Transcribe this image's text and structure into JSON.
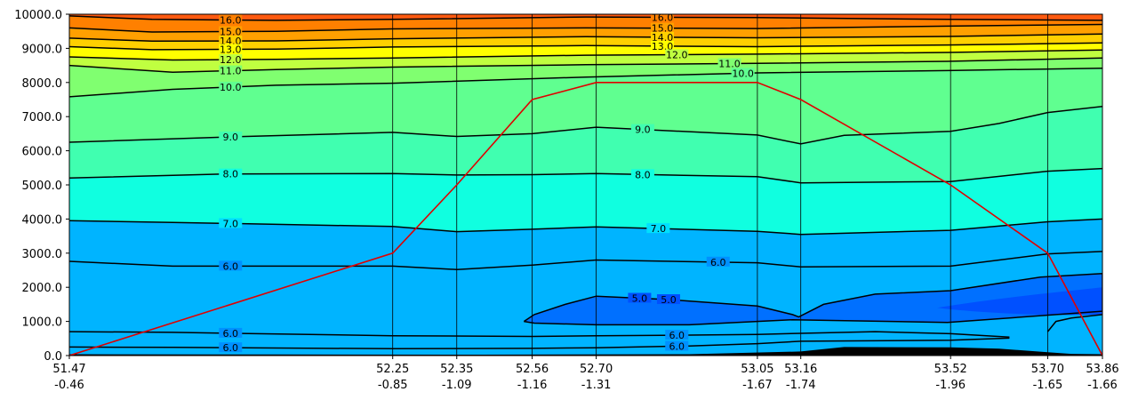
{
  "chart_data": {
    "type": "contour",
    "title": "",
    "xlabel": "",
    "ylabel": "",
    "ylim": [
      0,
      10000
    ],
    "y_ticks": [
      "0.0",
      "1000.0",
      "2000.0",
      "3000.0",
      "4000.0",
      "5000.0",
      "6000.0",
      "7000.0",
      "8000.0",
      "9000.0",
      "10000.0"
    ],
    "y_tick_values": [
      0,
      1000,
      2000,
      3000,
      4000,
      5000,
      6000,
      7000,
      8000,
      9000,
      10000
    ],
    "stations": [
      {
        "lat": "51.47",
        "lon": "-0.46",
        "x": 0.0
      },
      {
        "lat": "52.25",
        "lon": "-0.85",
        "x": 0.313
      },
      {
        "lat": "52.35",
        "lon": "-1.09",
        "x": 0.375
      },
      {
        "lat": "52.56",
        "lon": "-1.16",
        "x": 0.448
      },
      {
        "lat": "52.70",
        "lon": "-1.31",
        "x": 0.51
      },
      {
        "lat": "53.05",
        "lon": "-1.67",
        "x": 0.666
      },
      {
        "lat": "53.16",
        "lon": "-1.74",
        "x": 0.708
      },
      {
        "lat": "53.52",
        "lon": "-1.96",
        "x": 0.853
      },
      {
        "lat": "53.70",
        "lon": "-1.65",
        "x": 0.947
      },
      {
        "lat": "53.86",
        "lon": "-1.66",
        "x": 1.0
      }
    ],
    "fill_bands": [
      {
        "to": 5.0,
        "color": "#0050ff"
      },
      {
        "to": 5.5,
        "color": "#0070ff"
      },
      {
        "to": 6.0,
        "color": "#0090ff"
      },
      {
        "to": 6.5,
        "color": "#00b4ff"
      },
      {
        "to": 7.0,
        "color": "#00e0ff"
      },
      {
        "to": 8.0,
        "color": "#10ffe0"
      },
      {
        "to": 9.0,
        "color": "#40ffb0"
      },
      {
        "to": 10.0,
        "color": "#60ff90"
      },
      {
        "to": 11.0,
        "color": "#80ff70"
      },
      {
        "to": 12.0,
        "color": "#c0ff40"
      },
      {
        "to": 13.0,
        "color": "#ffff00"
      },
      {
        "to": 14.0,
        "color": "#ffd000"
      },
      {
        "to": 15.0,
        "color": "#ffa000"
      },
      {
        "to": 16.0,
        "color": "#ff8000"
      },
      {
        "to": 17.0,
        "color": "#ff5a10"
      }
    ],
    "contours": [
      {
        "level": 16.0,
        "label": "16.0",
        "x": [
          0,
          0.08,
          0.2,
          0.313,
          0.5,
          0.666,
          0.85,
          1
        ],
        "y": [
          9950,
          9850,
          9820,
          9850,
          9920,
          9900,
          9850,
          9820
        ],
        "labels_at": [
          0.156,
          0.574
        ]
      },
      {
        "level": 15.0,
        "label": "15.0",
        "x": [
          0,
          0.08,
          0.2,
          0.313,
          0.5,
          0.666,
          0.85,
          1
        ],
        "y": [
          9600,
          9480,
          9500,
          9570,
          9600,
          9580,
          9650,
          9700
        ],
        "labels_at": [
          0.156,
          0.574
        ]
      },
      {
        "level": 14.0,
        "label": "14.0",
        "x": [
          0,
          0.08,
          0.2,
          0.313,
          0.5,
          0.666,
          0.85,
          1
        ],
        "y": [
          9300,
          9210,
          9220,
          9280,
          9340,
          9310,
          9350,
          9420
        ],
        "labels_at": [
          0.156,
          0.574
        ]
      },
      {
        "level": 13.0,
        "label": "13.0",
        "x": [
          0,
          0.08,
          0.2,
          0.313,
          0.5,
          0.666,
          0.85,
          1
        ],
        "y": [
          9050,
          8960,
          8980,
          9040,
          9080,
          9050,
          9100,
          9160
        ],
        "labels_at": [
          0.156,
          0.574
        ]
      },
      {
        "level": 12.0,
        "label": "12.0",
        "x": [
          0,
          0.1,
          0.2,
          0.313,
          0.5,
          0.666,
          0.85,
          1
        ],
        "y": [
          8750,
          8660,
          8680,
          8720,
          8800,
          8830,
          8880,
          8950
        ],
        "labels_at": [
          0.156,
          0.588
        ]
      },
      {
        "level": 11.0,
        "label": "11.0",
        "x": [
          0,
          0.1,
          0.2,
          0.313,
          0.5,
          0.666,
          0.85,
          1
        ],
        "y": [
          8500,
          8300,
          8380,
          8450,
          8520,
          8560,
          8620,
          8720
        ],
        "labels_at": [
          0.156,
          0.639
        ]
      },
      {
        "level": 10.0,
        "label": "10.0",
        "x": [
          0,
          0.1,
          0.2,
          0.313,
          0.5,
          0.666,
          0.85,
          1
        ],
        "y": [
          7580,
          7800,
          7920,
          7980,
          8160,
          8280,
          8350,
          8420
        ],
        "labels_at": [
          0.156,
          0.652
        ]
      },
      {
        "level": 9.0,
        "label": "9.0",
        "x": [
          0,
          0.15,
          0.313,
          0.375,
          0.448,
          0.51,
          0.666,
          0.708,
          0.75,
          0.853,
          0.9,
          0.947,
          1
        ],
        "y": [
          6250,
          6400,
          6540,
          6420,
          6500,
          6690,
          6460,
          6200,
          6450,
          6570,
          6800,
          7120,
          7300
        ],
        "labels_at": [
          0.156,
          0.555
        ]
      },
      {
        "level": 8.0,
        "label": "8.0",
        "x": [
          0,
          0.15,
          0.313,
          0.375,
          0.448,
          0.51,
          0.666,
          0.708,
          0.853,
          0.947,
          1
        ],
        "y": [
          5200,
          5320,
          5330,
          5290,
          5300,
          5330,
          5240,
          5060,
          5100,
          5400,
          5480
        ],
        "labels_at": [
          0.156,
          0.555
        ]
      },
      {
        "level": 7.0,
        "label": "7.0",
        "x": [
          0,
          0.1,
          0.313,
          0.375,
          0.448,
          0.51,
          0.666,
          0.708,
          0.853,
          0.947,
          1
        ],
        "y": [
          3950,
          3900,
          3780,
          3630,
          3700,
          3770,
          3640,
          3550,
          3670,
          3920,
          4000
        ],
        "labels_at": [
          0.156,
          0.57
        ]
      },
      {
        "level": 6.0,
        "label": "6.0",
        "x": [
          0,
          0.1,
          0.313,
          0.375,
          0.448,
          0.51,
          0.666,
          0.708,
          0.853,
          0.947,
          1
        ],
        "y": [
          2760,
          2620,
          2620,
          2520,
          2650,
          2800,
          2720,
          2600,
          2620,
          2980,
          3050
        ],
        "labels_at": [
          0.156,
          0.628
        ]
      },
      {
        "level": 5.0,
        "label": "5.0",
        "x": [
          0.44,
          0.45,
          0.48,
          0.51,
          0.58,
          0.666,
          0.7,
          0.706,
          0.73,
          0.78,
          0.853,
          0.94,
          1.0,
          1.0,
          0.85,
          0.7,
          0.6,
          0.51,
          0.45,
          0.44
        ],
        "y": [
          1000,
          1200,
          1500,
          1740,
          1640,
          1450,
          1200,
          1130,
          1500,
          1800,
          1900,
          2300,
          2400,
          1300,
          970,
          1050,
          900,
          900,
          950,
          1000
        ],
        "labels_at": [
          0.58,
          0.552
        ]
      },
      {
        "level": 6.0,
        "label": "6.0",
        "x": [
          0,
          0.1,
          0.313,
          0.448,
          0.51,
          0.6,
          0.666,
          0.708,
          0.78,
          0.853,
          0.91
        ],
        "y": [
          700,
          680,
          580,
          560,
          580,
          600,
          620,
          650,
          700,
          640,
          540
        ],
        "labels_at": [
          0.156,
          0.588
        ]
      },
      {
        "level": 6.0,
        "label": "6.0",
        "x": [
          0,
          0.1,
          0.313,
          0.448,
          0.51,
          0.6,
          0.666,
          0.708,
          0.853,
          0.91
        ],
        "y": [
          250,
          240,
          200,
          210,
          230,
          280,
          350,
          420,
          450,
          510
        ],
        "labels_at": [
          0.156,
          0.588
        ]
      },
      {
        "level": 6.0,
        "label": "6.0",
        "x": [
          0.947,
          0.955,
          0.97,
          1.0
        ],
        "y": [
          700,
          1000,
          1100,
          1200
        ],
        "labels_at": []
      }
    ],
    "terrain": {
      "color": "#000000",
      "x": [
        0,
        0.2,
        0.4,
        0.6,
        0.708,
        0.75,
        0.853,
        0.9,
        0.947,
        0.97,
        1
      ],
      "y": [
        40,
        30,
        25,
        40,
        120,
        250,
        240,
        200,
        100,
        50,
        40
      ]
    },
    "flight_path": {
      "color": "#e00000",
      "x": [
        0,
        0.313,
        0.375,
        0.448,
        0.51,
        0.666,
        0.708,
        0.853,
        0.947,
        1
      ],
      "y": [
        0,
        3000,
        5000,
        7500,
        8000,
        8000,
        7500,
        5000,
        3000,
        0
      ]
    }
  }
}
